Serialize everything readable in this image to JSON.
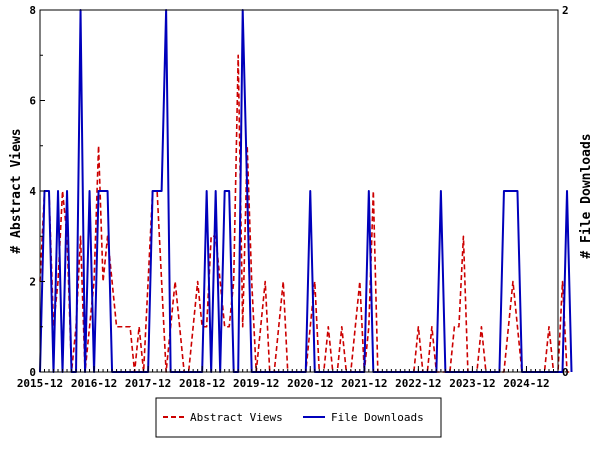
{
  "chart_data": {
    "type": "line",
    "ylabel_left": "# Abstract Views",
    "ylabel_right": "# File Downloads",
    "ylim_left": [
      0,
      8
    ],
    "ylim_right": [
      0,
      2
    ],
    "y_ticks_left": [
      "0",
      "2",
      "4",
      "6",
      "8"
    ],
    "y_ticks_right": [
      "0",
      "2"
    ],
    "x_ticks": [
      "2015-12",
      "2016-12",
      "2017-12",
      "2018-12",
      "2019-12",
      "2020-12",
      "2021-12",
      "2022-12",
      "2023-12",
      "2024-12"
    ],
    "x_range_months": [
      "2015-12",
      "2025-07"
    ],
    "legend": {
      "placement": "bottom-center",
      "entries": [
        "Abstract Views",
        "File Downloads"
      ]
    },
    "grid": false,
    "series": [
      {
        "name": "Abstract Views",
        "axis": "left",
        "color": "#cc0000",
        "style": "dashed",
        "values": [
          2,
          4,
          4,
          1,
          2,
          4,
          3,
          0,
          1,
          3,
          0,
          1,
          2,
          5,
          2,
          3,
          2,
          1,
          1,
          1,
          1,
          0,
          1,
          0,
          2,
          4,
          4,
          2,
          0,
          1,
          2,
          1,
          0,
          0,
          1,
          2,
          1,
          1,
          3,
          3,
          2,
          1,
          1,
          2,
          7,
          1,
          5,
          2,
          0,
          1,
          2,
          0,
          0,
          1,
          2,
          0,
          0,
          0,
          0,
          0,
          1,
          2,
          0,
          0,
          1,
          0,
          0,
          1,
          0,
          0,
          1,
          2,
          0,
          1,
          4,
          0,
          0,
          0,
          0,
          0,
          0,
          0,
          0,
          0,
          1,
          0,
          0,
          1,
          0,
          0,
          0,
          0,
          1,
          1,
          3,
          0,
          0,
          0,
          1,
          0,
          0,
          0,
          0,
          0,
          1,
          2,
          1,
          0,
          0,
          0,
          0,
          0,
          0,
          1,
          0,
          0,
          2,
          0,
          0
        ]
      },
      {
        "name": "File Downloads",
        "axis": "right",
        "color": "#0000bb",
        "style": "solid",
        "values": [
          0,
          1,
          1,
          0,
          1,
          0,
          1,
          0,
          0,
          2,
          0,
          1,
          0,
          1,
          1,
          1,
          0,
          0,
          0,
          0,
          0,
          0,
          0,
          0,
          0,
          1,
          1,
          1,
          2,
          0,
          0,
          0,
          0,
          0,
          0,
          0,
          0,
          1,
          0,
          1,
          0,
          1,
          1,
          0,
          0,
          2,
          1,
          0,
          0,
          0,
          0,
          0,
          0,
          0,
          0,
          0,
          0,
          0,
          0,
          0,
          1,
          0,
          0,
          0,
          0,
          0,
          0,
          0,
          0,
          0,
          0,
          0,
          0,
          1,
          0,
          0,
          0,
          0,
          0,
          0,
          0,
          0,
          0,
          0,
          0,
          0,
          0,
          0,
          0,
          1,
          0,
          0,
          0,
          0,
          0,
          0,
          0,
          0,
          0,
          0,
          0,
          0,
          0,
          1,
          1,
          1,
          1,
          0,
          0,
          0,
          0,
          0,
          0,
          0,
          0,
          0,
          0,
          1,
          0
        ]
      }
    ]
  }
}
